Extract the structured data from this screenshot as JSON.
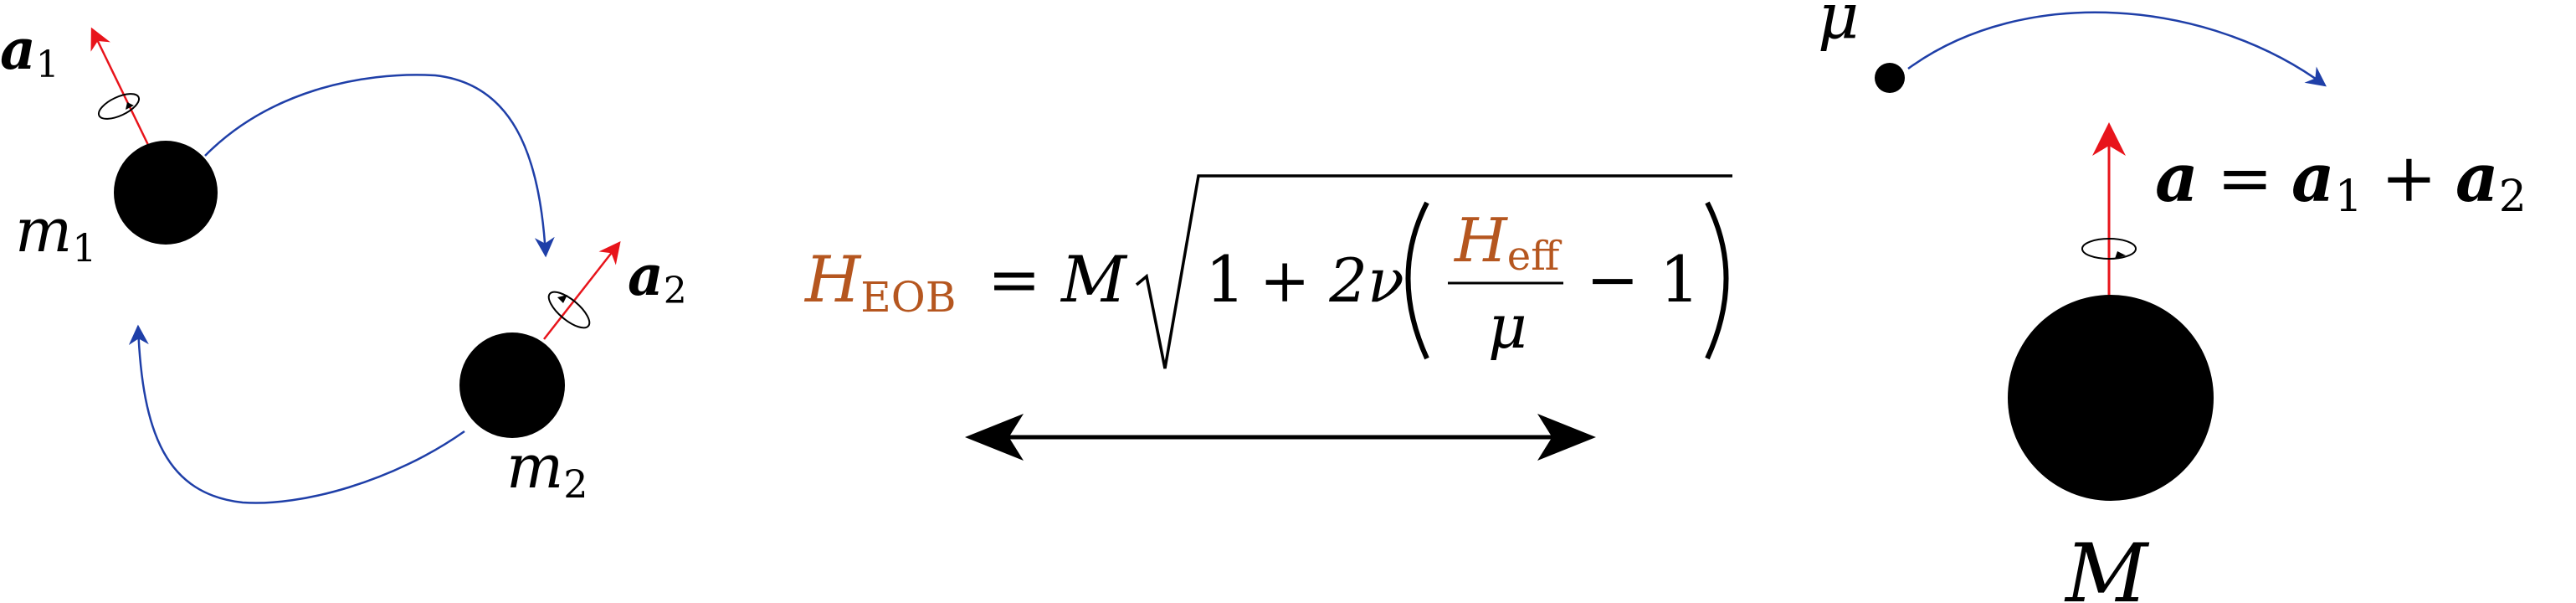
{
  "binary_system": {
    "body1": {
      "mass_label": "m",
      "mass_sub": "1",
      "spin_label": "a",
      "spin_sub": "1"
    },
    "body2": {
      "mass_label": "m",
      "mass_sub": "2",
      "spin_label": "a",
      "spin_sub": "2"
    }
  },
  "equation": {
    "lhs": "H",
    "lhs_sub": "EOB",
    "equals": "=",
    "mass": "M",
    "one": "1",
    "plus_two_nu": "+ 2ν",
    "heff": "H",
    "heff_sub": "eff",
    "denominator": "μ",
    "minus_one": "− 1"
  },
  "effective_system": {
    "test_mass_label": "μ",
    "central_mass_label": "M",
    "spin_eq": {
      "a": "a",
      "equals": "=",
      "a1": "a",
      "a1_sub": "1",
      "plus": "+",
      "a2": "a",
      "a2_sub": "2"
    }
  },
  "colors": {
    "orbit": "#1f3fa8",
    "spin": "#e8141b",
    "accent": "#b5561f",
    "body": "#000000"
  }
}
